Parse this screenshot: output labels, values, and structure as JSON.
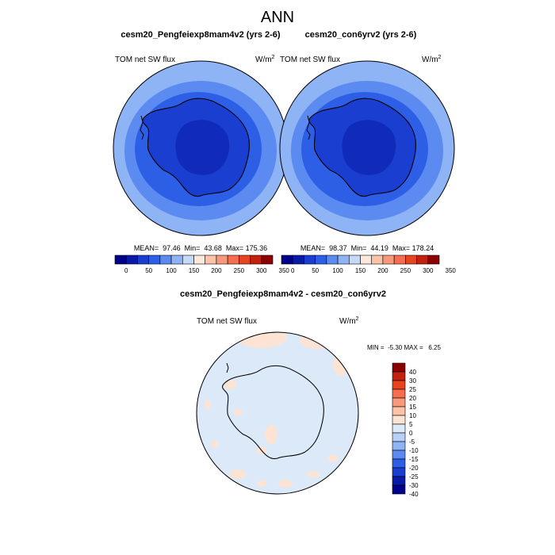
{
  "page_title": "ANN",
  "panels": [
    {
      "id": "left",
      "title": "cesm20_Pengfeiexp8mam4v2 (yrs 2-6)",
      "variable": "TOM net SW flux",
      "units": "W/m",
      "units_exp": "2",
      "stats": "MEAN=  97.46  Min=  43.68  Max= 175.36"
    },
    {
      "id": "right",
      "title": "cesm20_con6yrv2 (yrs 2-6)",
      "variable": "TOM net SW flux",
      "units": "W/m",
      "units_exp": "2",
      "stats": "MEAN=  98.37  Min=  44.19  Max= 178.24"
    }
  ],
  "abs_colorbar": {
    "colors": [
      "#00008b",
      "#0a1aa8",
      "#1a3fd0",
      "#2d5fe6",
      "#5b8bf0",
      "#8fb4f5",
      "#c5d9f8",
      "#fde9dc",
      "#fcc3a7",
      "#f9997c",
      "#f56e4f",
      "#e8431f",
      "#c4200e",
      "#8b0000"
    ],
    "labels": [
      "0",
      "50",
      "100",
      "150",
      "200",
      "250",
      "300",
      "350"
    ]
  },
  "diff": {
    "title": "cesm20_Pengfeiexp8mam4v2 - cesm20_con6yrv2",
    "variable": "TOM net SW flux",
    "units": "W/m",
    "units_exp": "2",
    "minmax": "MIN =  -5.30 MAX =   6.25"
  },
  "diff_colorbar": {
    "colors": [
      "#8b0000",
      "#c4200e",
      "#e8431f",
      "#f56e4f",
      "#f9997c",
      "#fcc3a7",
      "#fde3d3",
      "#dce9f8",
      "#b7d0f6",
      "#8fb4f5",
      "#5b8bf0",
      "#2d5fe6",
      "#1a3fd0",
      "#0a1aa8",
      "#00008b"
    ],
    "labels": [
      "40",
      "30",
      "25",
      "20",
      "15",
      "10",
      "5",
      "0",
      "-5",
      "-10",
      "-15",
      "-20",
      "-25",
      "-30",
      "-40"
    ]
  },
  "map_colors": {
    "ring_outer": "#8fb4f5",
    "ring_mid": "#5b8bf0",
    "ring_inner": "#2d5fe6",
    "continent": "#1a3fd0",
    "diff_background": "#dce9f8",
    "diff_positive": "#fde3d3"
  }
}
